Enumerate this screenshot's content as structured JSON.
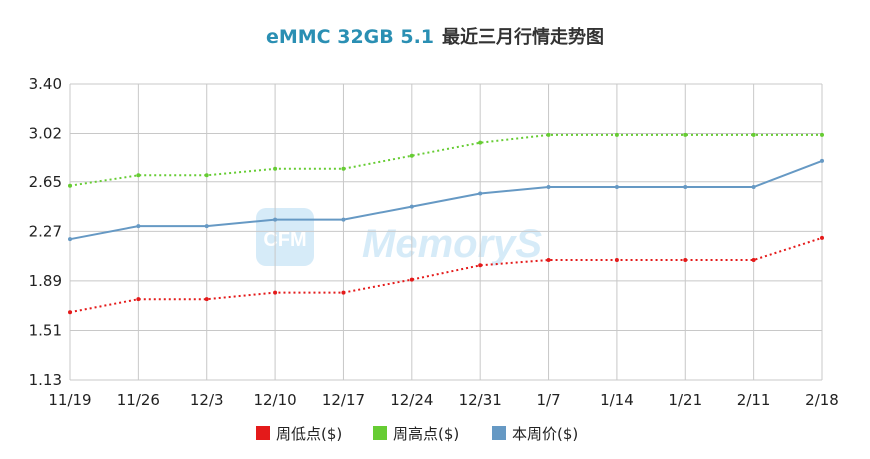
{
  "chart_data": {
    "type": "line",
    "title_model": "eMMC 32GB 5.1",
    "title_rest": "最近三月行情走势图",
    "watermark": "MemoryS",
    "categories": [
      "11/19",
      "11/26",
      "12/3",
      "12/10",
      "12/17",
      "12/24",
      "12/31",
      "1/7",
      "1/14",
      "1/21",
      "2/11",
      "2/18"
    ],
    "yticks": [
      "3.40",
      "3.02",
      "2.65",
      "2.27",
      "1.89",
      "1.51",
      "1.13"
    ],
    "ylim": [
      1.13,
      3.4
    ],
    "grid": true,
    "legend_position": "bottom",
    "series": [
      {
        "name": "周低点($)",
        "color": "#e41a1a",
        "style": "dotted",
        "values": [
          1.65,
          1.75,
          1.75,
          1.8,
          1.8,
          1.9,
          2.01,
          2.05,
          2.05,
          2.05,
          2.05,
          2.22
        ]
      },
      {
        "name": "周高点($)",
        "color": "#66cc33",
        "style": "dotted",
        "values": [
          2.62,
          2.7,
          2.7,
          2.75,
          2.75,
          2.85,
          2.95,
          3.01,
          3.01,
          3.01,
          3.01,
          3.01
        ]
      },
      {
        "name": "本周价($)",
        "color": "#6699c4",
        "style": "solid",
        "values": [
          2.21,
          2.31,
          2.31,
          2.36,
          2.36,
          2.46,
          2.56,
          2.61,
          2.61,
          2.61,
          2.61,
          2.81
        ]
      }
    ]
  }
}
